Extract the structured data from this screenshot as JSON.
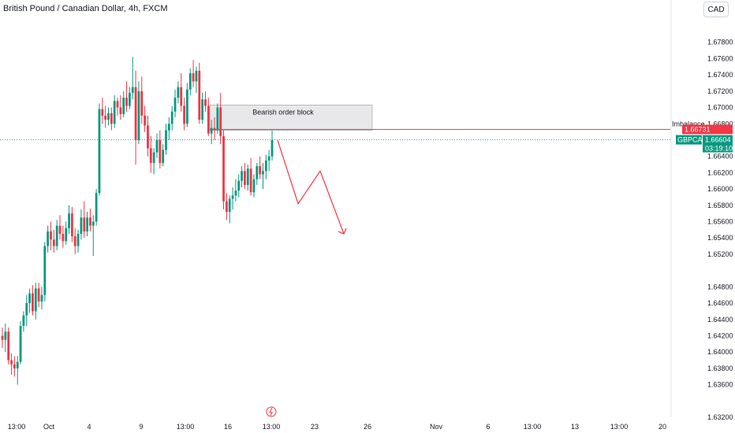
{
  "header": {
    "title": "British Pound / Canadian Dollar, 4h, FXCM",
    "currency": "CAD"
  },
  "colors": {
    "bull": "#089981",
    "bear": "#f23645",
    "zone_fill": "#e8e8ea",
    "zone_stroke": "#9598a1",
    "grid_line": "#f0f3fa",
    "axis_text": "#131722",
    "current_line": "#26a69a",
    "projection": "#f23645"
  },
  "chart_data": {
    "type": "candlestick",
    "symbol": "GBPCAD",
    "title": "British Pound / Canadian Dollar, 4h, FXCM",
    "ylim": [
      1.632,
      1.68
    ],
    "y_ticks": [
      "1.67800",
      "1.67600",
      "1.67400",
      "1.67200",
      "1.67000",
      "1.66800",
      "1.66400",
      "1.66200",
      "1.66000",
      "1.65800",
      "1.65600",
      "1.65400",
      "1.65200",
      "1.64800",
      "1.64600",
      "1.64400",
      "1.64200",
      "1.64000",
      "1.63800",
      "1.63600",
      "1.63200"
    ],
    "x_ticks": [
      "13:00",
      "Oct",
      "4",
      "9",
      "13:00",
      "16",
      "13:00",
      "23",
      "26",
      "Nov",
      "6",
      "13:00",
      "13",
      "13:00",
      "20"
    ],
    "candles": [
      [
        1.642,
        1.643,
        1.6405,
        1.6415
      ],
      [
        1.6415,
        1.6435,
        1.64,
        1.6425
      ],
      [
        1.6425,
        1.643,
        1.6385,
        1.639
      ],
      [
        1.639,
        1.6398,
        1.6372,
        1.6385
      ],
      [
        1.6385,
        1.6395,
        1.637,
        1.638
      ],
      [
        1.638,
        1.6395,
        1.636,
        1.6388
      ],
      [
        1.6388,
        1.6438,
        1.6385,
        1.6432
      ],
      [
        1.6432,
        1.645,
        1.6425,
        1.6445
      ],
      [
        1.6445,
        1.647,
        1.6432,
        1.646
      ],
      [
        1.646,
        1.6478,
        1.6448,
        1.6472
      ],
      [
        1.6472,
        1.6482,
        1.6445,
        1.645
      ],
      [
        1.645,
        1.6485,
        1.644,
        1.6478
      ],
      [
        1.6478,
        1.6485,
        1.6455,
        1.6462
      ],
      [
        1.6462,
        1.648,
        1.6452,
        1.647
      ],
      [
        1.647,
        1.6535,
        1.6462,
        1.653
      ],
      [
        1.653,
        1.6555,
        1.6522,
        1.6548
      ],
      [
        1.6548,
        1.656,
        1.6525,
        1.6538
      ],
      [
        1.6538,
        1.655,
        1.6522,
        1.653
      ],
      [
        1.653,
        1.6562,
        1.6525,
        1.6555
      ],
      [
        1.6555,
        1.6568,
        1.6538,
        1.6545
      ],
      [
        1.6545,
        1.6555,
        1.6528,
        1.6536
      ],
      [
        1.6536,
        1.656,
        1.6532,
        1.6552
      ],
      [
        1.6552,
        1.658,
        1.6545,
        1.657
      ],
      [
        1.657,
        1.6578,
        1.6535,
        1.6542
      ],
      [
        1.6542,
        1.6552,
        1.652,
        1.653
      ],
      [
        1.653,
        1.655,
        1.6522,
        1.6545
      ],
      [
        1.6545,
        1.6575,
        1.6538,
        1.6565
      ],
      [
        1.6565,
        1.6585,
        1.654,
        1.6548
      ],
      [
        1.6548,
        1.6572,
        1.6542,
        1.6565
      ],
      [
        1.6565,
        1.6576,
        1.6548,
        1.6555
      ],
      [
        1.6555,
        1.6568,
        1.6518,
        1.656
      ],
      [
        1.656,
        1.66,
        1.6555,
        1.6595
      ],
      [
        1.6595,
        1.6705,
        1.6592,
        1.6698
      ],
      [
        1.6698,
        1.6712,
        1.668,
        1.669
      ],
      [
        1.669,
        1.6702,
        1.6675,
        1.6685
      ],
      [
        1.6685,
        1.67,
        1.6678,
        1.6693
      ],
      [
        1.6693,
        1.67,
        1.6672,
        1.668
      ],
      [
        1.668,
        1.6715,
        1.6675,
        1.6708
      ],
      [
        1.6708,
        1.6712,
        1.669,
        1.67
      ],
      [
        1.67,
        1.6715,
        1.6685,
        1.6692
      ],
      [
        1.6692,
        1.672,
        1.6688,
        1.6712
      ],
      [
        1.6712,
        1.6732,
        1.6695,
        1.6702
      ],
      [
        1.6702,
        1.6725,
        1.6698,
        1.6718
      ],
      [
        1.6718,
        1.6762,
        1.671,
        1.6725
      ],
      [
        1.6725,
        1.6745,
        1.663,
        1.666
      ],
      [
        1.666,
        1.6732,
        1.6655,
        1.672
      ],
      [
        1.672,
        1.6738,
        1.668,
        1.669
      ],
      [
        1.669,
        1.6702,
        1.667,
        1.6678
      ],
      [
        1.6678,
        1.669,
        1.664,
        1.665
      ],
      [
        1.665,
        1.6665,
        1.662,
        1.6632
      ],
      [
        1.6632,
        1.665,
        1.6618,
        1.6645
      ],
      [
        1.6645,
        1.6668,
        1.6638,
        1.666
      ],
      [
        1.666,
        1.6672,
        1.6625,
        1.6632
      ],
      [
        1.6632,
        1.6655,
        1.6628,
        1.6648
      ],
      [
        1.6648,
        1.668,
        1.6642,
        1.6672
      ],
      [
        1.6672,
        1.6688,
        1.666,
        1.668
      ],
      [
        1.668,
        1.6702,
        1.6672,
        1.6695
      ],
      [
        1.6695,
        1.6722,
        1.6688,
        1.6712
      ],
      [
        1.6712,
        1.6732,
        1.6705,
        1.6725
      ],
      [
        1.6725,
        1.6742,
        1.6695,
        1.6702
      ],
      [
        1.6702,
        1.6712,
        1.6672,
        1.668
      ],
      [
        1.668,
        1.673,
        1.6676,
        1.6722
      ],
      [
        1.6722,
        1.6748,
        1.6715,
        1.6742
      ],
      [
        1.6742,
        1.6758,
        1.6725,
        1.6732
      ],
      [
        1.6732,
        1.675,
        1.6718,
        1.6745
      ],
      [
        1.6745,
        1.6755,
        1.668,
        1.6685
      ],
      [
        1.6685,
        1.6718,
        1.668,
        1.671
      ],
      [
        1.671,
        1.672,
        1.6695,
        1.6702
      ],
      [
        1.6702,
        1.6712,
        1.6665,
        1.6668
      ],
      [
        1.6668,
        1.6685,
        1.6655,
        1.6675
      ],
      [
        1.6675,
        1.6688,
        1.666,
        1.6672
      ],
      [
        1.6672,
        1.6705,
        1.6668,
        1.67
      ],
      [
        1.67,
        1.6718,
        1.6655,
        1.6665
      ],
      [
        1.6665,
        1.6672,
        1.6575,
        1.6585
      ],
      [
        1.6585,
        1.6595,
        1.6562,
        1.6572
      ],
      [
        1.6572,
        1.6592,
        1.6558,
        1.6588
      ],
      [
        1.6588,
        1.6602,
        1.6575,
        1.6592
      ],
      [
        1.6592,
        1.6612,
        1.6585,
        1.6598
      ],
      [
        1.6598,
        1.6618,
        1.659,
        1.661
      ],
      [
        1.661,
        1.6628,
        1.6602,
        1.6622
      ],
      [
        1.6622,
        1.6632,
        1.66,
        1.6605
      ],
      [
        1.6605,
        1.663,
        1.6598,
        1.6625
      ],
      [
        1.6625,
        1.6638,
        1.6592,
        1.6596
      ],
      [
        1.6596,
        1.6618,
        1.659,
        1.6612
      ],
      [
        1.6612,
        1.6632,
        1.6605,
        1.6628
      ],
      [
        1.6628,
        1.664,
        1.6612,
        1.6618
      ],
      [
        1.6618,
        1.6632,
        1.66,
        1.6622
      ],
      [
        1.6622,
        1.6642,
        1.6612,
        1.6635
      ],
      [
        1.6635,
        1.6648,
        1.6622,
        1.664
      ],
      [
        1.664,
        1.6672,
        1.6635,
        1.666
      ]
    ],
    "bearish_order_block": {
      "label": "Bearish order block",
      "top": 1.6703,
      "bottom": 1.6672
    },
    "imbalance": {
      "label": "Imbalance",
      "price": 1.66731
    },
    "current": {
      "symbol": "GBPCAD",
      "price": 1.66604,
      "countdown": "03:19:10"
    },
    "projection_path": [
      1.666,
      1.6582,
      1.6622,
      1.6545
    ]
  }
}
